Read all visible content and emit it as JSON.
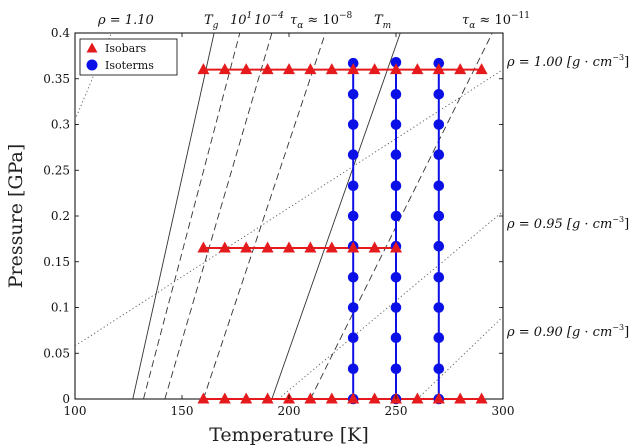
{
  "chart_data": {
    "type": "scatter",
    "xlabel": "Temperature [K]",
    "ylabel": "Pressure [GPa]",
    "xlim": [
      100,
      300
    ],
    "ylim": [
      0,
      0.4
    ],
    "xticks": [
      100,
      150,
      200,
      250,
      300
    ],
    "yticks": [
      0,
      0.05,
      0.1,
      0.15,
      0.2,
      0.25,
      0.3,
      0.35,
      0.4
    ],
    "grid": false,
    "legend": {
      "position": "top-left",
      "entries": [
        {
          "name": "Isobars",
          "marker": "triangle",
          "color": "#e41a1c"
        },
        {
          "name": "Isoterms",
          "marker": "circle",
          "color": "#0a10e6"
        }
      ]
    },
    "series": [
      {
        "name": "Isobars",
        "color": "#e41a1c",
        "marker": "triangle",
        "lines": [
          {
            "p": 0.0,
            "x": [
              160,
              170,
              180,
              190,
              200,
              210,
              220,
              230,
              240,
              250,
              260,
              270,
              280,
              290
            ]
          },
          {
            "p": 0.165,
            "x": [
              160,
              170,
              180,
              190,
              200,
              210,
              220,
              230,
              240,
              250
            ]
          },
          {
            "p": 0.36,
            "x": [
              160,
              170,
              180,
              190,
              200,
              210,
              220,
              230,
              240,
              250,
              260,
              270,
              280,
              290
            ]
          }
        ]
      },
      {
        "name": "Isoterms",
        "color": "#0a10e6",
        "marker": "circle",
        "lines": [
          {
            "T": 230,
            "y": [
              0,
              0.033,
              0.067,
              0.1,
              0.133,
              0.167,
              0.2,
              0.233,
              0.267,
              0.3,
              0.333,
              0.367
            ]
          },
          {
            "T": 250,
            "y": [
              0,
              0.033,
              0.067,
              0.1,
              0.133,
              0.167,
              0.2,
              0.233,
              0.267,
              0.3,
              0.333,
              0.368
            ]
          },
          {
            "T": 270,
            "y": [
              0,
              0.033,
              0.067,
              0.1,
              0.133,
              0.167,
              0.2,
              0.233,
              0.267,
              0.3,
              0.333,
              0.367
            ]
          }
        ]
      }
    ],
    "reference_lines": [
      {
        "label": "T_g",
        "style": "solid",
        "points": [
          [
            127,
            0
          ],
          [
            165,
            0.4
          ]
        ]
      },
      {
        "label": "10^1",
        "style": "dashed",
        "points": [
          [
            132,
            0
          ],
          [
            177,
            0.4
          ]
        ]
      },
      {
        "label": "10^-4",
        "style": "dashed",
        "points": [
          [
            142,
            0
          ],
          [
            192,
            0.4
          ]
        ]
      },
      {
        "label": "τα ≈ 10^-8",
        "style": "dashed",
        "points": [
          [
            160,
            0
          ],
          [
            217,
            0.4
          ]
        ]
      },
      {
        "label": "T_m",
        "style": "solid",
        "points": [
          [
            192,
            0
          ],
          [
            252,
            0.4
          ]
        ]
      },
      {
        "label": "τα ≈ 10^-11",
        "style": "dashed",
        "points": [
          [
            210,
            0
          ],
          [
            295,
            0.4
          ]
        ]
      }
    ],
    "density_lines": [
      {
        "label": "ρ = 1.10",
        "points": [
          [
            100,
            0.305
          ],
          [
            117,
            0.4
          ]
        ]
      },
      {
        "label": "ρ = 1.00 [g · cm^-3]",
        "points": [
          [
            100,
            0.058
          ],
          [
            300,
            0.36
          ]
        ]
      },
      {
        "label": "ρ = 0.95 [g · cm^-3]",
        "points": [
          [
            195,
            0
          ],
          [
            300,
            0.205
          ]
        ]
      },
      {
        "label": "ρ = 0.90 [g · cm^-3]",
        "points": [
          [
            260,
            0
          ],
          [
            300,
            0.09
          ]
        ]
      }
    ],
    "annotations": {
      "rho_110": "ρ = 1.10",
      "tg": "T",
      "tg_sub": "g",
      "e1": "10",
      "e1_sup": "1",
      "e2": "10",
      "e2_sup": "−4",
      "tau8": "τ",
      "tau8_sub": "α",
      "tau8_rest": " ≈ 10",
      "tau8_sup": "−8",
      "tm": "T",
      "tm_sub": "m",
      "tau11": "τ",
      "tau11_sub": "α",
      "tau11_rest": " ≈ 10",
      "tau11_sup": "−11",
      "rho_100": "ρ = 1.00 [g · cm",
      "rho_100_sup": "−3",
      "rho_095": "ρ = 0.95 [g · cm",
      "rho_095_sup": "−3",
      "rho_090": "ρ = 0.90 [g · cm",
      "rho_090_sup": "−3",
      "bracket": "]"
    }
  }
}
